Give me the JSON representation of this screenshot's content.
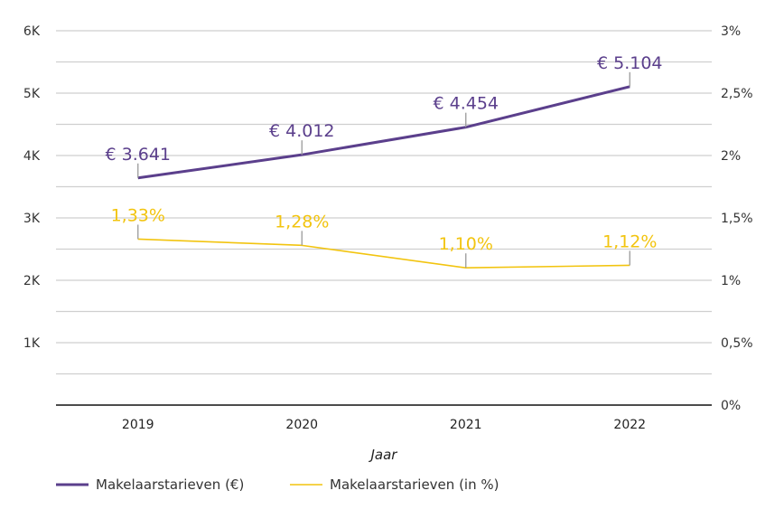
{
  "chart_data": {
    "type": "line",
    "categories": [
      "2019",
      "2020",
      "2021",
      "2022"
    ],
    "xlabel": "Jaar",
    "y_left": {
      "ticks": [
        "6K",
        "5K",
        "4K",
        "3K",
        "2K",
        "1K"
      ],
      "range": [
        0,
        6000
      ]
    },
    "y_right": {
      "ticks": [
        "3%",
        "2,5%",
        "2%",
        "1,5%",
        "1%",
        "0,5%",
        "0%"
      ],
      "range": [
        0,
        3
      ]
    },
    "grid": true,
    "legend_position": "bottom-left",
    "series": [
      {
        "name": "Makelaarstarieven (€)",
        "axis": "left",
        "color": "#5b3f8c",
        "values": [
          3641,
          4012,
          4454,
          5104
        ],
        "labels": [
          "€ 3.641",
          "€ 4.012",
          "€ 4.454",
          "€ 5.104"
        ]
      },
      {
        "name": "Makelaarstarieven (in %)",
        "axis": "right",
        "color": "#f2c40f",
        "values": [
          1.33,
          1.28,
          1.1,
          1.12
        ],
        "labels": [
          "1,33%",
          "1,28%",
          "1,10%",
          "1,12%"
        ]
      }
    ]
  }
}
